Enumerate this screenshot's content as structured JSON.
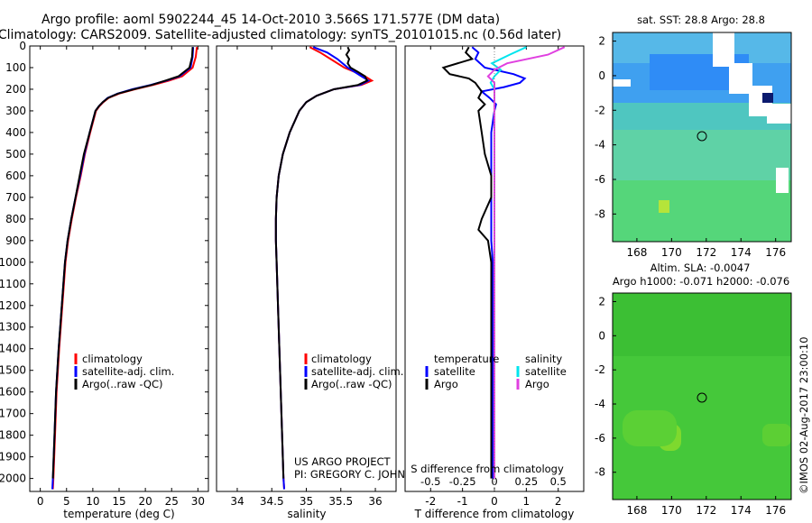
{
  "header": {
    "line1": "Argo profile: aoml 5902244_45 14-Oct-2010 3.566S 171.577E (DM data)",
    "line2": "Climatology: CARS2009. Satellite-adjusted climatology: synTS_20101015.nc (0.56d later)"
  },
  "colors": {
    "climatology": "#ff0000",
    "satellite": "#0000ff",
    "argo": "#000000",
    "sal_satellite": "#00e5ee",
    "sal_argo": "#e040e0"
  },
  "legends": {
    "temperature": [
      "climatology",
      "satellite-adj. clim.",
      "Argo(..raw -QC)"
    ],
    "salinity": [
      "climatology",
      "satellite-adj. clim.",
      "Argo(..raw -QC)"
    ],
    "difference": {
      "temp_title": "temperature",
      "sal_title": "salinity",
      "temp_items": [
        "satellite",
        "Argo"
      ],
      "sal_items": [
        "satellite",
        "Argo"
      ]
    }
  },
  "project": {
    "line1": "US ARGO PROJECT",
    "line2": "PI: GREGORY C. JOHNSON"
  },
  "map_sst": {
    "title": "sat. SST: 28.8  Argo: 28.8",
    "xticks": [
      "168",
      "170",
      "172",
      "174",
      "176"
    ],
    "yticks": [
      "2",
      "0",
      "-2",
      "-4",
      "-6",
      "-8"
    ]
  },
  "map_sla": {
    "title1": "Altim. SLA: -0.0047",
    "title2": "Argo h1000: -0.071  h2000: -0.076",
    "xticks": [
      "168",
      "170",
      "172",
      "174",
      "176"
    ],
    "yticks": [
      "2",
      "0",
      "-2",
      "-4",
      "-6",
      "-8"
    ]
  },
  "credit": "©IMOS 02-Aug-2017 23:00:10",
  "chart_data": [
    {
      "type": "line",
      "name": "temperature-profile",
      "xlabel": "temperature (deg C)",
      "ylabel": "",
      "xlim": [
        -2,
        32
      ],
      "ylim": [
        2060,
        0
      ],
      "xticks": [
        0,
        5,
        10,
        15,
        20,
        25,
        30
      ],
      "yticks": [
        0,
        100,
        200,
        300,
        400,
        500,
        600,
        700,
        800,
        900,
        1000,
        1100,
        1200,
        1300,
        1400,
        1500,
        1600,
        1700,
        1800,
        1900,
        2000
      ],
      "series": [
        {
          "name": "climatology",
          "color": "#ff0000",
          "depth": [
            5,
            50,
            100,
            140,
            160,
            180,
            200,
            220,
            240,
            260,
            280,
            300,
            400,
            500,
            600,
            700,
            800,
            900,
            1000,
            1200,
            1400,
            1600,
            1800,
            2000,
            2050
          ],
          "values": [
            29.8,
            29.6,
            29.0,
            27.0,
            24.5,
            21.5,
            18.0,
            15.0,
            13.0,
            12.0,
            11.2,
            10.6,
            9.5,
            8.5,
            7.7,
            6.8,
            6.0,
            5.3,
            4.8,
            4.2,
            3.6,
            3.1,
            2.8,
            2.5,
            2.4
          ]
        },
        {
          "name": "satellite-adj. clim.",
          "color": "#0000ff",
          "depth": [
            5,
            50,
            100,
            140,
            160,
            180,
            200,
            220,
            240,
            260,
            280,
            300,
            400,
            500,
            600,
            700,
            800,
            900,
            1000,
            1200,
            1400,
            1600,
            1800,
            2000,
            2050
          ],
          "values": [
            29.1,
            29.0,
            28.6,
            26.5,
            24.0,
            21.0,
            17.5,
            14.7,
            12.8,
            11.9,
            11.1,
            10.5,
            9.4,
            8.4,
            7.6,
            6.7,
            5.9,
            5.2,
            4.7,
            4.1,
            3.5,
            3.0,
            2.7,
            2.4,
            2.3
          ]
        },
        {
          "name": "Argo",
          "color": "#000000",
          "depth": [
            5,
            50,
            100,
            140,
            160,
            180,
            200,
            220,
            240,
            260,
            280,
            300,
            400,
            500,
            600,
            700,
            800,
            900,
            1000,
            1200,
            1400,
            1600,
            1800,
            2000
          ],
          "values": [
            29.0,
            28.9,
            28.4,
            26.3,
            23.8,
            21.2,
            17.8,
            14.8,
            12.9,
            11.9,
            11.1,
            10.5,
            9.4,
            8.3,
            7.5,
            6.7,
            5.9,
            5.2,
            4.7,
            4.1,
            3.5,
            3.0,
            2.7,
            2.4
          ]
        }
      ]
    },
    {
      "type": "line",
      "name": "salinity-profile",
      "xlabel": "salinity",
      "ylabel": "",
      "xlim": [
        33.7,
        36.3
      ],
      "ylim": [
        2060,
        0
      ],
      "xticks": [
        34,
        34.5,
        35,
        35.5,
        36
      ],
      "series": [
        {
          "name": "climatology",
          "color": "#ff0000",
          "depth": [
            5,
            30,
            60,
            100,
            140,
            160,
            180,
            200,
            230,
            260,
            300,
            400,
            500,
            600,
            700,
            800,
            900,
            1000,
            1200,
            1500,
            1800,
            2000,
            2050
          ],
          "values": [
            35.05,
            35.2,
            35.35,
            35.55,
            35.85,
            35.95,
            35.8,
            35.4,
            35.15,
            35.0,
            34.9,
            34.76,
            34.66,
            34.6,
            34.57,
            34.56,
            34.56,
            34.57,
            34.59,
            34.62,
            34.65,
            34.67,
            34.68
          ]
        },
        {
          "name": "satellite-adj. clim.",
          "color": "#0000ff",
          "depth": [
            5,
            30,
            60,
            100,
            140,
            160,
            180,
            200,
            230,
            260,
            300,
            400,
            500,
            600,
            700,
            800,
            900,
            1000,
            1200,
            1500,
            1800,
            2000,
            2050
          ],
          "values": [
            35.1,
            35.3,
            35.45,
            35.6,
            35.8,
            35.9,
            35.78,
            35.4,
            35.15,
            35.0,
            34.9,
            34.76,
            34.66,
            34.6,
            34.57,
            34.56,
            34.56,
            34.57,
            34.59,
            34.62,
            34.65,
            34.67,
            34.68
          ]
        },
        {
          "name": "Argo",
          "color": "#000000",
          "depth": [
            5,
            20,
            40,
            60,
            80,
            100,
            120,
            140,
            160,
            180,
            200,
            230,
            260,
            300,
            400,
            500,
            600,
            700,
            800,
            900,
            1000,
            1200,
            1500,
            1800,
            2000
          ],
          "values": [
            35.6,
            35.62,
            35.58,
            35.62,
            35.6,
            35.64,
            35.75,
            35.85,
            35.88,
            35.75,
            35.4,
            35.15,
            35.0,
            34.9,
            34.76,
            34.66,
            34.6,
            34.57,
            34.56,
            34.56,
            34.57,
            34.59,
            34.62,
            34.65,
            34.67
          ]
        }
      ]
    },
    {
      "type": "line",
      "name": "difference-profile",
      "xlabel": "T difference from climatology",
      "xlabel_top": "S difference from climatology",
      "xlim": [
        -2.8,
        2.8
      ],
      "ylim": [
        2060,
        0
      ],
      "xticks": [
        -2,
        -1,
        0,
        1,
        2
      ],
      "sal_ticks": [
        -0.5,
        -0.25,
        0,
        0.25,
        0.5
      ],
      "sal_tick_labels": [
        "-0.5",
        "-0.25",
        "0",
        "0.25",
        "0.5"
      ],
      "sal_scale": 4,
      "series": [
        {
          "name": "T satellite",
          "color": "#0000ff",
          "depth": [
            5,
            30,
            60,
            100,
            130,
            150,
            170,
            190,
            210,
            240,
            270,
            300,
            400,
            500,
            600,
            700,
            800,
            900,
            1000,
            1200,
            1500,
            1800,
            2000
          ],
          "values": [
            -0.7,
            -0.5,
            -0.6,
            -0.3,
            0.6,
            0.95,
            0.8,
            0.3,
            -0.4,
            -0.15,
            0.05,
            0.0,
            -0.1,
            -0.1,
            -0.1,
            -0.1,
            -0.1,
            -0.1,
            -0.05,
            -0.05,
            -0.05,
            -0.05,
            -0.05
          ]
        },
        {
          "name": "T Argo",
          "color": "#000000",
          "depth": [
            5,
            30,
            60,
            100,
            130,
            150,
            170,
            190,
            210,
            240,
            270,
            300,
            400,
            500,
            600,
            700,
            800,
            850,
            900,
            1000,
            1200,
            1500,
            1800,
            2000
          ],
          "values": [
            -0.8,
            -0.9,
            -0.7,
            -1.6,
            -1.4,
            -0.8,
            -0.6,
            -0.5,
            -0.4,
            -0.5,
            -0.3,
            -0.5,
            -0.4,
            -0.3,
            -0.1,
            -0.1,
            -0.4,
            -0.5,
            -0.2,
            -0.1,
            -0.1,
            -0.1,
            -0.1,
            -0.1
          ]
        },
        {
          "name": "S satellite",
          "color": "#00e5ee",
          "depth": [
            5,
            40,
            80,
            110,
            140,
            170,
            200,
            250,
            300,
            400,
            500,
            700,
            1000,
            1500,
            2000
          ],
          "values": [
            0.25,
            0.12,
            -0.02,
            0.05,
            0.0,
            -0.03,
            0.0,
            0.0,
            0.0,
            0.0,
            0.0,
            0.0,
            0.0,
            0.0,
            0.0
          ]
        },
        {
          "name": "S Argo",
          "color": "#e040e0",
          "depth": [
            5,
            40,
            80,
            110,
            140,
            170,
            200,
            250,
            300,
            400,
            500,
            700,
            1000,
            1500,
            2000
          ],
          "values": [
            0.55,
            0.42,
            0.1,
            0.0,
            -0.05,
            0.0,
            0.0,
            0.0,
            0.0,
            0.0,
            0.0,
            0.0,
            0.0,
            0.0,
            0.0
          ]
        }
      ]
    }
  ]
}
